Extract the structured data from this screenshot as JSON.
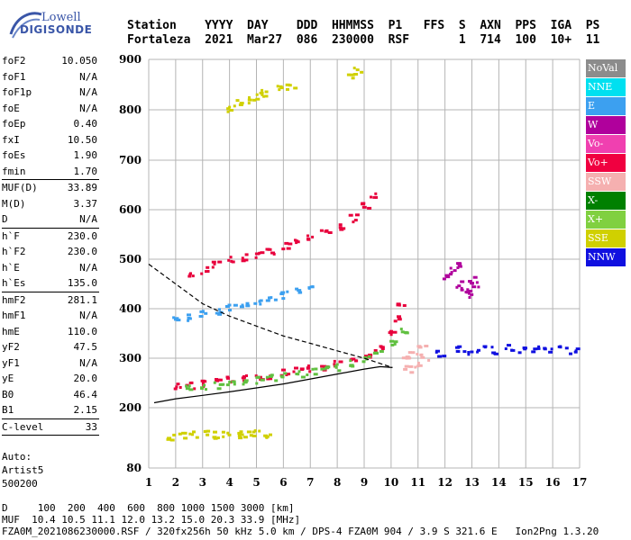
{
  "logo": {
    "line1": "Lowell",
    "line2": "DIGISONDE"
  },
  "header": {
    "labels": [
      "Station",
      "YYYY",
      "DAY",
      "DDD",
      "HHMMSS",
      "P1",
      "FFS",
      "S",
      "AXN",
      "PPS",
      "IGA",
      "PS"
    ],
    "values": [
      "Fortaleza",
      "2021",
      "Mar27",
      "086",
      "230000",
      "RSF",
      "",
      "1",
      "714",
      "100",
      "10+",
      "11"
    ]
  },
  "params": {
    "group1": [
      {
        "k": "foF2",
        "v": "10.050"
      },
      {
        "k": "foF1",
        "v": "N/A"
      },
      {
        "k": "foF1p",
        "v": "N/A"
      },
      {
        "k": "foE",
        "v": "N/A"
      },
      {
        "k": "foEp",
        "v": "0.40"
      },
      {
        "k": "fxI",
        "v": "10.50"
      },
      {
        "k": "foEs",
        "v": "1.90"
      },
      {
        "k": "fmin",
        "v": "1.70"
      }
    ],
    "group2": [
      {
        "k": "MUF(D)",
        "v": "33.89"
      },
      {
        "k": "M(D)",
        "v": "3.37"
      },
      {
        "k": "D",
        "v": "N/A"
      }
    ],
    "group3": [
      {
        "k": "h`F",
        "v": "230.0"
      },
      {
        "k": "h`F2",
        "v": "230.0"
      },
      {
        "k": "h`E",
        "v": "N/A"
      },
      {
        "k": "h`Es",
        "v": "135.0"
      }
    ],
    "group4": [
      {
        "k": "hmF2",
        "v": "281.1"
      },
      {
        "k": "hmF1",
        "v": "N/A"
      },
      {
        "k": "hmE",
        "v": "110.0"
      },
      {
        "k": "yF2",
        "v": "47.5"
      },
      {
        "k": "yF1",
        "v": "N/A"
      },
      {
        "k": "yE",
        "v": "20.0"
      },
      {
        "k": "B0",
        "v": "46.4"
      },
      {
        "k": "B1",
        "v": "2.15"
      }
    ],
    "group5": [
      {
        "k": "C-level",
        "v": "33"
      }
    ],
    "auto": [
      "Auto:",
      "Artist5",
      "500200"
    ]
  },
  "legend": [
    {
      "label": "NoVal",
      "color": "#8c8c8c"
    },
    {
      "label": "NNE",
      "color": "#00e0f0"
    },
    {
      "label": "E",
      "color": "#3ca0f0"
    },
    {
      "label": "W",
      "color": "#b0009c"
    },
    {
      "label": "Vo-",
      "color": "#f040b0"
    },
    {
      "label": "Vo+",
      "color": "#f00040"
    },
    {
      "label": "SSW",
      "color": "#f5b0b0"
    },
    {
      "label": "X-",
      "color": "#008000"
    },
    {
      "label": "X+",
      "color": "#80d040"
    },
    {
      "label": "SSE",
      "color": "#d0d000"
    },
    {
      "label": "NNW",
      "color": "#1010e0"
    }
  ],
  "footer": {
    "line1": "D     100  200  400  600  800 1000 1500 3000 [km]",
    "line2": "MUF  10.4 10.5 11.1 12.0 13.2 15.0 20.3 33.9 [MHz]",
    "line3": "FZA0M_2021086230000.RSF / 320fx256h 50 kHz 5.0 km / DPS-4 FZA0M 904 / 3.9 S 321.6 E   Ion2Png 1.3.20"
  },
  "chart_data": {
    "type": "scatter",
    "title": "",
    "xlabel": "",
    "ylabel": "",
    "xlim": [
      1,
      17
    ],
    "ylim": [
      80,
      900
    ],
    "xticks": [
      1,
      2,
      3,
      4,
      5,
      6,
      7,
      8,
      9,
      10,
      11,
      12,
      13,
      14,
      15,
      16,
      17
    ],
    "yticks": [
      80,
      200,
      300,
      400,
      500,
      600,
      700,
      800,
      900
    ],
    "grid": true,
    "legend_placement": "right",
    "clusters": [
      {
        "name": "F2 o-trace",
        "color": "#e8003c",
        "points": [
          [
            2.0,
            245
          ],
          [
            2.5,
            248
          ],
          [
            3.0,
            252
          ],
          [
            3.5,
            255
          ],
          [
            4.0,
            258
          ],
          [
            4.5,
            262
          ],
          [
            5.0,
            265
          ],
          [
            5.5,
            268
          ],
          [
            6.0,
            272
          ],
          [
            6.5,
            276
          ],
          [
            7.0,
            280
          ],
          [
            7.5,
            285
          ],
          [
            8.0,
            292
          ],
          [
            8.5,
            300
          ],
          [
            9.0,
            310
          ],
          [
            9.5,
            325
          ],
          [
            10.0,
            350
          ],
          [
            10.2,
            380
          ],
          [
            10.3,
            410
          ]
        ]
      },
      {
        "name": "F2 x-trace",
        "color": "#60c040",
        "points": [
          [
            2.5,
            240
          ],
          [
            3.0,
            245
          ],
          [
            3.5,
            248
          ],
          [
            4.0,
            252
          ],
          [
            4.5,
            255
          ],
          [
            5.0,
            258
          ],
          [
            5.5,
            262
          ],
          [
            6.0,
            266
          ],
          [
            6.5,
            270
          ],
          [
            7.0,
            274
          ],
          [
            7.5,
            278
          ],
          [
            8.0,
            284
          ],
          [
            8.5,
            292
          ],
          [
            9.0,
            300
          ],
          [
            9.5,
            312
          ],
          [
            10.0,
            330
          ],
          [
            10.4,
            360
          ]
        ]
      },
      {
        "name": "second hop",
        "color": "#e8003c",
        "points": [
          [
            2.5,
            470
          ],
          [
            3.0,
            480
          ],
          [
            3.5,
            490
          ],
          [
            4.0,
            500
          ],
          [
            4.5,
            505
          ],
          [
            5.0,
            512
          ],
          [
            5.5,
            520
          ],
          [
            6.0,
            528
          ],
          [
            6.5,
            536
          ],
          [
            7.0,
            545
          ],
          [
            7.5,
            555
          ],
          [
            8.0,
            568
          ],
          [
            8.5,
            585
          ],
          [
            9.0,
            610
          ],
          [
            9.3,
            630
          ]
        ]
      },
      {
        "name": "E reflections",
        "color": "#3ca0f0",
        "points": [
          [
            2.0,
            380
          ],
          [
            2.5,
            385
          ],
          [
            3.0,
            392
          ],
          [
            3.5,
            398
          ],
          [
            4.0,
            405
          ],
          [
            4.5,
            412
          ],
          [
            5.0,
            418
          ],
          [
            5.5,
            424
          ],
          [
            6.0,
            430
          ],
          [
            6.5,
            436
          ],
          [
            7.0,
            442
          ]
        ]
      },
      {
        "name": "Es layer",
        "color": "#d0d000",
        "points": [
          [
            1.8,
            145
          ],
          [
            2.2,
            148
          ],
          [
            2.6,
            150
          ],
          [
            3.0,
            150
          ],
          [
            3.4,
            148
          ],
          [
            3.8,
            150
          ],
          [
            4.2,
            148
          ],
          [
            4.6,
            150
          ],
          [
            5.0,
            152
          ],
          [
            5.3,
            150
          ]
        ]
      },
      {
        "name": "NNW spread",
        "color": "#1010e0",
        "points": [
          [
            11.8,
            310
          ],
          [
            12.3,
            320
          ],
          [
            12.8,
            315
          ],
          [
            13.3,
            320
          ],
          [
            13.8,
            318
          ],
          [
            14.3,
            322
          ],
          [
            14.8,
            318
          ],
          [
            15.3,
            322
          ],
          [
            15.8,
            318
          ],
          [
            16.3,
            320
          ],
          [
            16.7,
            318
          ]
        ]
      },
      {
        "name": "W patch",
        "color": "#b0009c",
        "points": [
          [
            12.0,
            470
          ],
          [
            12.3,
            480
          ],
          [
            12.5,
            450
          ],
          [
            12.7,
            440
          ],
          [
            12.9,
            460
          ],
          [
            13.1,
            450
          ],
          [
            12.4,
            495
          ],
          [
            12.8,
            430
          ]
        ]
      },
      {
        "name": "SSW cluster",
        "color": "#f5b0b0",
        "points": [
          [
            10.5,
            300
          ],
          [
            10.8,
            310
          ],
          [
            11.0,
            290
          ],
          [
            11.2,
            305
          ],
          [
            10.6,
            280
          ],
          [
            11.1,
            320
          ]
        ]
      },
      {
        "name": "upper sparse",
        "color": "#d0d000",
        "points": [
          [
            4.0,
            805
          ],
          [
            4.3,
            815
          ],
          [
            4.7,
            820
          ],
          [
            5.0,
            830
          ],
          [
            5.3,
            835
          ],
          [
            5.8,
            845
          ],
          [
            6.2,
            850
          ],
          [
            8.5,
            870
          ],
          [
            8.7,
            880
          ]
        ]
      }
    ],
    "profile_curve": [
      [
        1.2,
        210
      ],
      [
        2.0,
        218
      ],
      [
        3.0,
        225
      ],
      [
        4.0,
        232
      ],
      [
        5.0,
        240
      ],
      [
        6.0,
        248
      ],
      [
        7.0,
        258
      ],
      [
        8.0,
        268
      ],
      [
        9.0,
        278
      ],
      [
        9.6,
        283
      ],
      [
        10.05,
        281
      ]
    ],
    "muf_curve": [
      [
        1.0,
        490
      ],
      [
        2.0,
        450
      ],
      [
        3.0,
        410
      ],
      [
        4.0,
        385
      ],
      [
        5.0,
        365
      ],
      [
        6.0,
        345
      ],
      [
        7.0,
        330
      ],
      [
        8.0,
        315
      ],
      [
        9.0,
        300
      ],
      [
        10.05,
        281
      ]
    ]
  }
}
